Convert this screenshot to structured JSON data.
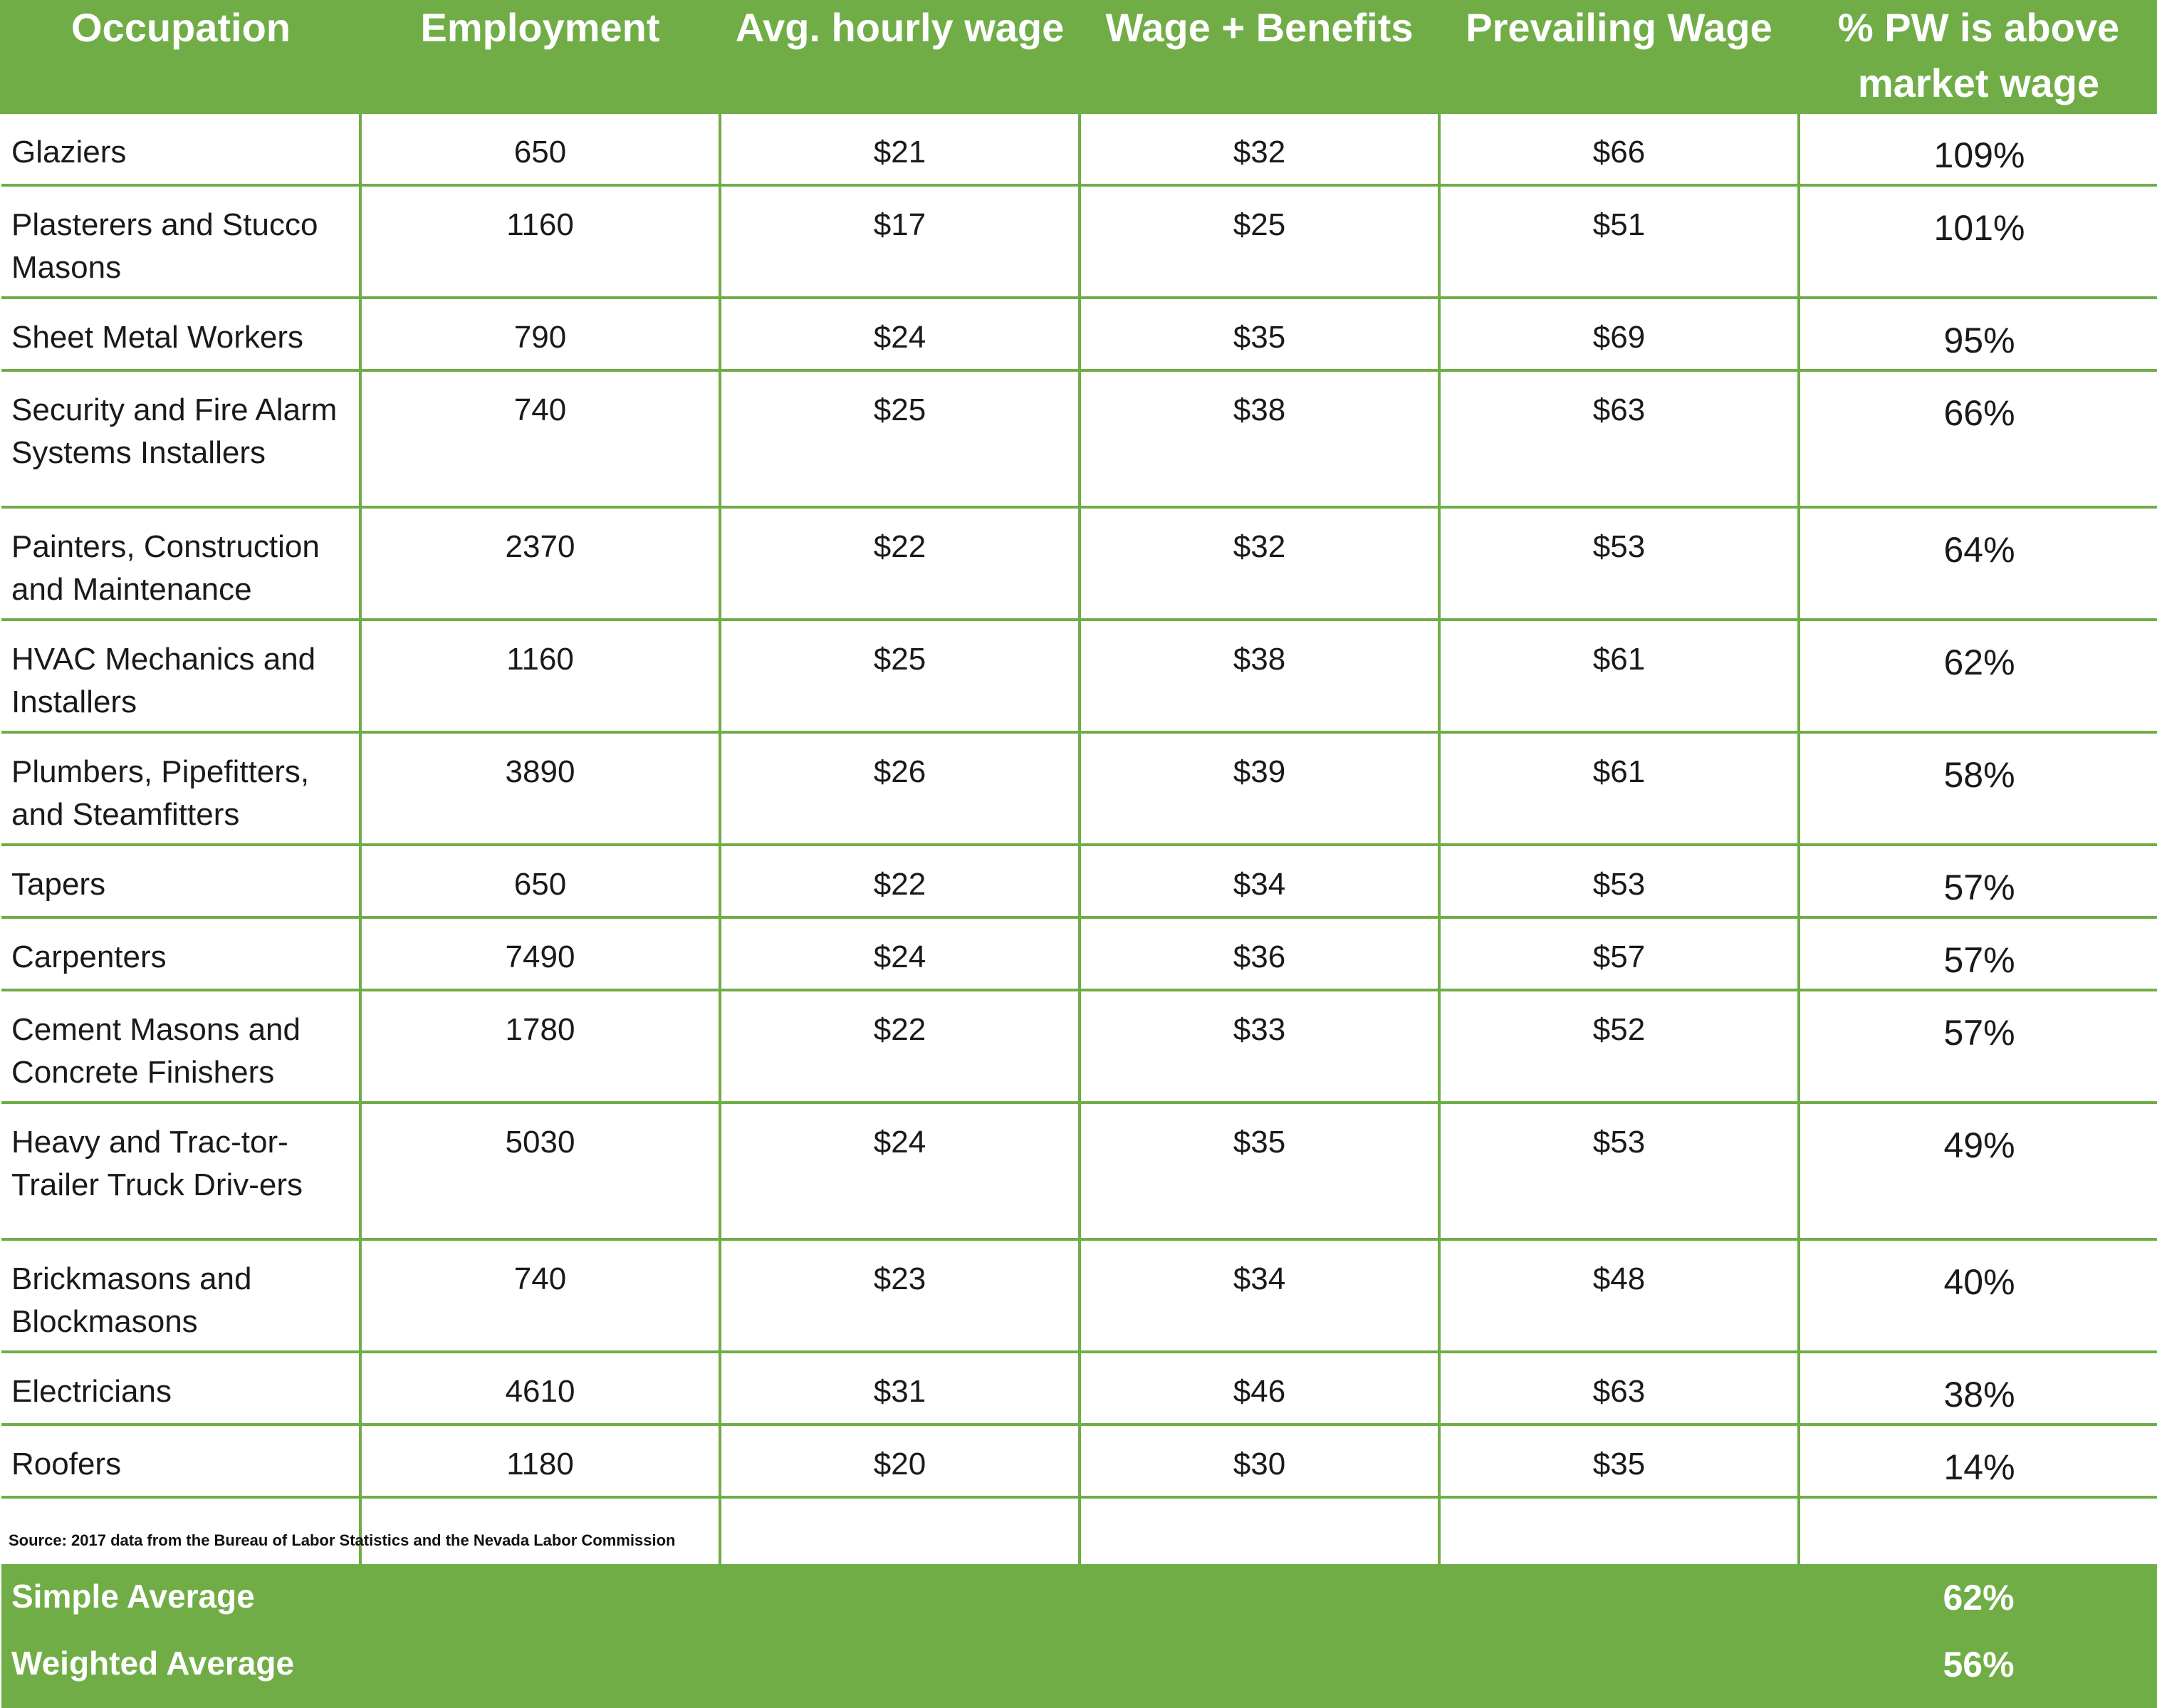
{
  "chart_data": {
    "type": "table",
    "columns": [
      "Occupation",
      "Employment",
      "Avg. hourly wage",
      "Wage + Benefits",
      "Prevailing Wage",
      "% PW is above market wage"
    ],
    "rows": [
      [
        "Glaziers",
        "650",
        "$21",
        "$32",
        "$66",
        "109%"
      ],
      [
        "Plasterers and Stucco Masons",
        "1160",
        "$17",
        "$25",
        "$51",
        "101%"
      ],
      [
        "Sheet Metal Workers",
        "790",
        "$24",
        "$35",
        "$69",
        "95%"
      ],
      [
        "Security and Fire Alarm Systems Installers",
        "740",
        "$25",
        "$38",
        "$63",
        "66%"
      ],
      [
        "Painters, Construction and Maintenance",
        "2370",
        "$22",
        "$32",
        "$53",
        "64%"
      ],
      [
        "HVAC Mechanics and Installers",
        "1160",
        "$25",
        "$38",
        "$61",
        "62%"
      ],
      [
        "Plumbers, Pipefitters, and Steamfitters",
        "3890",
        "$26",
        "$39",
        "$61",
        "58%"
      ],
      [
        "Tapers",
        "650",
        "$22",
        "$34",
        "$53",
        "57%"
      ],
      [
        "Carpenters",
        "7490",
        "$24",
        "$36",
        "$57",
        "57%"
      ],
      [
        "Cement Masons and Concrete Finishers",
        "1780",
        "$22",
        "$33",
        "$52",
        "57%"
      ],
      [
        "Heavy and Trac-tor-Trailer Truck Driv-ers",
        "5030",
        "$24",
        "$35",
        "$53",
        "49%"
      ],
      [
        "Brickmasons and Blockmasons",
        "740",
        "$23",
        "$34",
        "$48",
        "40%"
      ],
      [
        "Electricians",
        "4610",
        "$31",
        "$46",
        "$63",
        "38%"
      ],
      [
        "Roofers",
        "1180",
        "$20",
        "$30",
        "$35",
        "14%"
      ]
    ],
    "summary": [
      {
        "label": "Simple Average",
        "value": "62%"
      },
      {
        "label": "Weighted Average",
        "value": "56%"
      }
    ],
    "source": "Source: 2017 data from the Bureau of Labor Statistics and the Nevada Labor Commission"
  },
  "colors": {
    "header_green": "#70ad47",
    "header_text": "#ffffff",
    "body_text": "#1a1a1a"
  }
}
